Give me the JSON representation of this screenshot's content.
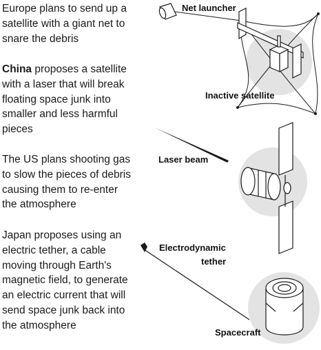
{
  "paragraphs": {
    "europe": "Europe plans to send up a satellite with a giant net to snare the debris",
    "china_bold": "China",
    "china_rest": " proposes a satellite with a laser that will break floating space junk into smaller and less harmful pieces",
    "us": "The US plans shooting gas to slow the pieces of debris causing them to re-enter the atmosphere",
    "japan": "Japan proposes using an electric tether, a cable moving through Earth's magnetic field, to generate an electric current that will send space junk back into the atmosphere"
  },
  "labels": {
    "net_launcher": "Net launcher",
    "inactive_satellite": "Inactive satellite",
    "laser_beam": "Laser beam",
    "electrodynamic_1": "Electrodynamic",
    "electrodynamic_2": "tether",
    "spacecraft": "Spacecraft"
  },
  "colors": {
    "halo": "#e3e3e3",
    "outline": "#1a1a1a",
    "text": "#1a1a1a"
  }
}
